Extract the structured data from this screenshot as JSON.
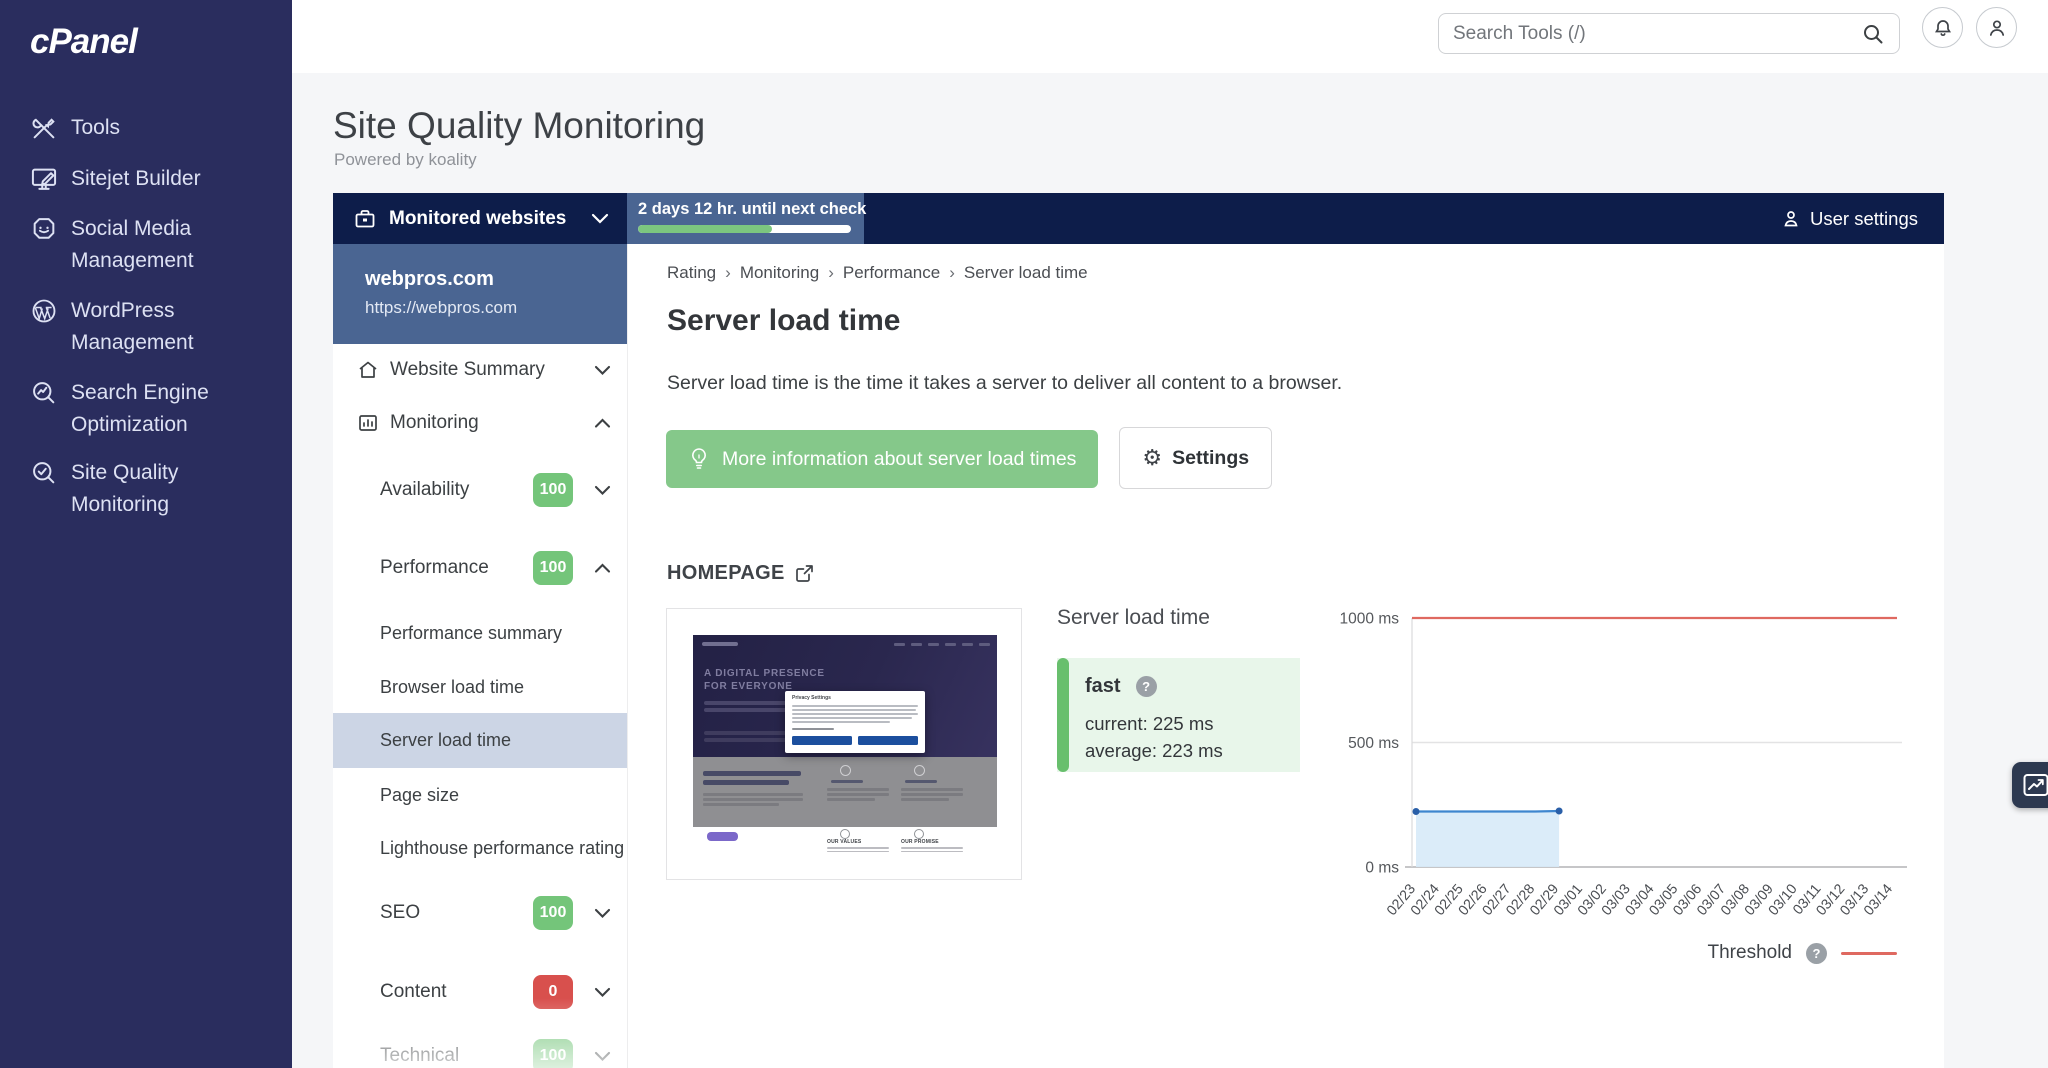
{
  "brand": {
    "logo_text": "cPanel"
  },
  "topbar": {
    "search_placeholder": "Search Tools (/)"
  },
  "sidebar": {
    "items": [
      {
        "label": "Tools",
        "icon": "tools-icon"
      },
      {
        "label": "Sitejet Builder",
        "icon": "sitejet-icon"
      },
      {
        "label": "Social Media Management",
        "icon": "social-media-icon"
      },
      {
        "label": "WordPress Management",
        "icon": "wordpress-icon"
      },
      {
        "label": "Search Engine Optimization",
        "icon": "seo-icon"
      },
      {
        "label": "Site Quality Monitoring",
        "icon": "site-quality-icon"
      }
    ]
  },
  "page": {
    "title": "Site Quality Monitoring",
    "subtitle": "Powered by koality"
  },
  "toolbar": {
    "monitored_websites_label": "Monitored websites",
    "next_check_text": "2 days 12 hr. until next check",
    "progress_pct": 63,
    "user_settings_label": "User settings"
  },
  "site_nav": {
    "site": {
      "name": "webpros.com",
      "url": "https://webpros.com"
    },
    "items": [
      {
        "label": "Website Summary",
        "type": "parent",
        "icon": "home",
        "chevron": "down"
      },
      {
        "label": "Monitoring",
        "type": "parent",
        "icon": "monitor",
        "chevron": "up"
      },
      {
        "label": "Availability",
        "type": "section",
        "badge": "100",
        "badge_color": "green",
        "chevron": "down"
      },
      {
        "label": "Performance",
        "type": "section",
        "badge": "100",
        "badge_color": "green",
        "chevron": "up"
      },
      {
        "label": "Performance summary",
        "type": "sub"
      },
      {
        "label": "Browser load time",
        "type": "sub"
      },
      {
        "label": "Server load time",
        "type": "sub",
        "selected": true
      },
      {
        "label": "Page size",
        "type": "sub"
      },
      {
        "label": "Lighthouse performance rating",
        "type": "sub"
      },
      {
        "label": "SEO",
        "type": "section",
        "badge": "100",
        "badge_color": "green",
        "chevron": "down"
      },
      {
        "label": "Content",
        "type": "section",
        "badge": "0",
        "badge_color": "red",
        "chevron": "down"
      },
      {
        "label": "Technical",
        "type": "section",
        "badge": "100",
        "badge_color": "green",
        "chevron": "down"
      }
    ]
  },
  "content": {
    "breadcrumb": [
      "Rating",
      "Monitoring",
      "Performance",
      "Server load time"
    ],
    "heading": "Server load time",
    "description": "Server load time is the time it takes a server to deliver all content to a browser.",
    "info_button_label": "More information about server load times",
    "settings_button_label": "Settings",
    "section_label": "HOMEPAGE",
    "status": {
      "title": "Server load time",
      "level": "fast",
      "current": "current: 225 ms",
      "average": "average: 223 ms"
    },
    "thumbnail": {
      "hero_headline": "A DIGITAL PRESENCE\nFOR EVERYONE",
      "modal_title": "Privacy Settings",
      "columns": [
        "OUR VALUES",
        "OUR PROMISE"
      ]
    }
  },
  "chart_data": {
    "type": "area",
    "title": "Server load time",
    "ylabel": "milliseconds",
    "ylim": [
      0,
      1050
    ],
    "yticks": [
      {
        "value": 0,
        "label": "0 ms"
      },
      {
        "value": 500,
        "label": "500 ms"
      },
      {
        "value": 1000,
        "label": "1000 ms"
      }
    ],
    "x": [
      "02/23",
      "02/24",
      "02/25",
      "02/26",
      "02/27",
      "02/28",
      "02/29",
      "03/01",
      "03/02",
      "03/03",
      "03/04",
      "03/05",
      "03/06",
      "03/07",
      "03/08",
      "03/09",
      "03/10",
      "03/11",
      "03/12",
      "03/13",
      "03/14"
    ],
    "series": [
      {
        "name": "Server load time (ms)",
        "values": [
          223,
          223,
          223,
          223,
          223,
          223,
          225,
          null,
          null,
          null,
          null,
          null,
          null,
          null,
          null,
          null,
          null,
          null,
          null,
          null,
          null
        ],
        "line_color": "#3e86cf",
        "fill_color": "#d7eaf8",
        "dot_color": "#2a5fa8"
      }
    ],
    "threshold": {
      "label": "Threshold",
      "value": 1000,
      "color": "#df6960"
    },
    "legend_position": "bottom-right",
    "grid": true
  },
  "colors": {
    "brand_navy": "#2a2d5e",
    "toolbar_navy": "#0d1d4a",
    "steel_blue": "#4a6592",
    "success_green": "#74c57a",
    "danger_red": "#d8504d",
    "button_green": "#85c88a",
    "status_bg_green": "#e8f6ea",
    "selected_row": "#ccd5e5",
    "threshold_red": "#df6960",
    "series_blue": "#3e86cf"
  }
}
